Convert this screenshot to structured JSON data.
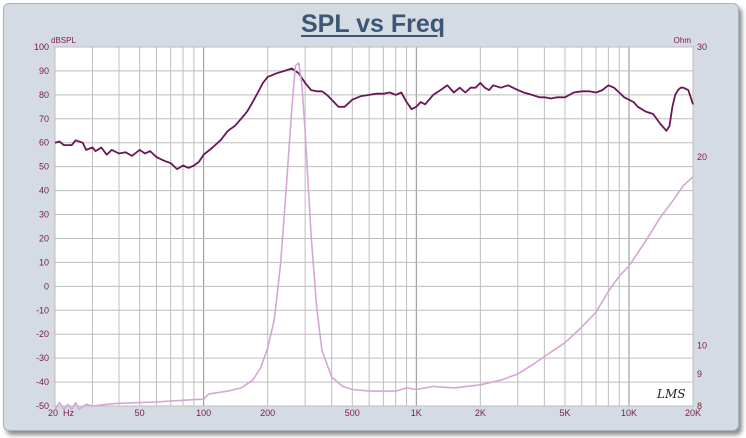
{
  "chart_data": {
    "type": "line",
    "title": "SPL vs Freq",
    "xlabel": "",
    "ylabel": "dBSPL",
    "y2label": "Ohm",
    "xscale": "log",
    "xlim": [
      20,
      20000
    ],
    "ylim": [
      -50,
      100
    ],
    "y2lim": [
      8,
      30
    ],
    "y2scale": "log",
    "grid": true,
    "x_tick_values": [
      20,
      50,
      100,
      200,
      500,
      1000,
      2000,
      5000,
      10000,
      20000
    ],
    "x_tick_labels": [
      "20  Hz",
      "50",
      "100",
      "200",
      "500",
      "1K",
      "2K",
      "5K",
      "10K",
      "20K"
    ],
    "y_ticks": [
      100,
      90,
      80,
      70,
      60,
      50,
      40,
      30,
      20,
      10,
      0,
      -10,
      -20,
      -30,
      -40,
      -50
    ],
    "y2_ticks": [
      30,
      20,
      10,
      9,
      8
    ],
    "logo_text": "LMS",
    "colors": {
      "spl": "#6b1654",
      "impedance": "#d4a7d3",
      "axis_text": "#7a1a4a",
      "title": "#3c5676",
      "frame": "#d5dbe2"
    },
    "series": [
      {
        "name": "",
        "axis": "left",
        "points": [
          [
            20,
            60
          ],
          [
            21,
            60.5
          ],
          [
            22,
            59
          ],
          [
            24,
            59
          ],
          [
            25,
            61
          ],
          [
            27,
            60
          ],
          [
            28,
            57
          ],
          [
            30,
            58
          ],
          [
            31,
            56.5
          ],
          [
            33,
            58
          ],
          [
            35,
            55
          ],
          [
            37,
            57
          ],
          [
            40,
            55.5
          ],
          [
            43,
            56
          ],
          [
            46,
            54.5
          ],
          [
            50,
            57
          ],
          [
            53,
            55.5
          ],
          [
            56,
            56.5
          ],
          [
            60,
            54
          ],
          [
            65,
            52.5
          ],
          [
            70,
            51.5
          ],
          [
            75,
            49
          ],
          [
            80,
            50.5
          ],
          [
            85,
            49.5
          ],
          [
            90,
            50.5
          ],
          [
            95,
            52
          ],
          [
            100,
            55
          ],
          [
            110,
            58
          ],
          [
            120,
            61
          ],
          [
            130,
            65
          ],
          [
            140,
            67
          ],
          [
            150,
            70
          ],
          [
            160,
            73
          ],
          [
            170,
            77
          ],
          [
            180,
            81
          ],
          [
            190,
            85
          ],
          [
            200,
            87.5
          ],
          [
            220,
            89
          ],
          [
            240,
            90
          ],
          [
            260,
            91
          ],
          [
            280,
            89
          ],
          [
            300,
            85
          ],
          [
            320,
            82
          ],
          [
            340,
            81.5
          ],
          [
            360,
            81.5
          ],
          [
            380,
            80
          ],
          [
            400,
            78
          ],
          [
            430,
            75
          ],
          [
            460,
            75
          ],
          [
            500,
            78
          ],
          [
            550,
            79.5
          ],
          [
            600,
            80
          ],
          [
            650,
            80.5
          ],
          [
            700,
            80.5
          ],
          [
            750,
            81
          ],
          [
            800,
            80
          ],
          [
            850,
            81
          ],
          [
            900,
            77
          ],
          [
            950,
            74
          ],
          [
            1000,
            75
          ],
          [
            1050,
            77
          ],
          [
            1100,
            76
          ],
          [
            1200,
            80
          ],
          [
            1300,
            82
          ],
          [
            1400,
            84
          ],
          [
            1500,
            81
          ],
          [
            1600,
            83
          ],
          [
            1700,
            81
          ],
          [
            1800,
            83
          ],
          [
            1900,
            83
          ],
          [
            2000,
            85
          ],
          [
            2100,
            83
          ],
          [
            2200,
            82
          ],
          [
            2300,
            84
          ],
          [
            2500,
            83
          ],
          [
            2700,
            84
          ],
          [
            3000,
            82
          ],
          [
            3200,
            81
          ],
          [
            3500,
            80
          ],
          [
            3800,
            79
          ],
          [
            4000,
            79
          ],
          [
            4300,
            78.5
          ],
          [
            4600,
            79
          ],
          [
            5000,
            79
          ],
          [
            5500,
            81
          ],
          [
            6000,
            81.5
          ],
          [
            6500,
            81.5
          ],
          [
            7000,
            81
          ],
          [
            7500,
            82
          ],
          [
            8000,
            84
          ],
          [
            8500,
            83
          ],
          [
            9000,
            81
          ],
          [
            9500,
            79
          ],
          [
            10000,
            78
          ],
          [
            10500,
            77
          ],
          [
            11000,
            75
          ],
          [
            12000,
            73
          ],
          [
            13000,
            72
          ],
          [
            14000,
            68
          ],
          [
            15000,
            65
          ],
          [
            15500,
            67
          ],
          [
            16000,
            75
          ],
          [
            16500,
            80
          ],
          [
            17000,
            82
          ],
          [
            17500,
            83
          ],
          [
            18000,
            83
          ],
          [
            19000,
            82
          ],
          [
            20000,
            76
          ]
        ]
      },
      {
        "name": "",
        "axis": "right",
        "points": [
          [
            20,
            7.9
          ],
          [
            21,
            8.1
          ],
          [
            22,
            7.9
          ],
          [
            23,
            8.05
          ],
          [
            24,
            7.9
          ],
          [
            25,
            8.1
          ],
          [
            26,
            7.9
          ],
          [
            28,
            8.05
          ],
          [
            30,
            8.0
          ],
          [
            35,
            8.05
          ],
          [
            40,
            8.08
          ],
          [
            50,
            8.1
          ],
          [
            60,
            8.12
          ],
          [
            70,
            8.15
          ],
          [
            80,
            8.17
          ],
          [
            90,
            8.19
          ],
          [
            100,
            8.2
          ],
          [
            105,
            8.35
          ],
          [
            110,
            8.38
          ],
          [
            130,
            8.45
          ],
          [
            150,
            8.55
          ],
          [
            170,
            8.8
          ],
          [
            185,
            9.2
          ],
          [
            200,
            9.9
          ],
          [
            215,
            11
          ],
          [
            230,
            13.5
          ],
          [
            245,
            18
          ],
          [
            260,
            24
          ],
          [
            270,
            28
          ],
          [
            280,
            28.3
          ],
          [
            290,
            26
          ],
          [
            300,
            22
          ],
          [
            320,
            15
          ],
          [
            340,
            11.5
          ],
          [
            360,
            9.8
          ],
          [
            400,
            8.9
          ],
          [
            450,
            8.6
          ],
          [
            500,
            8.5
          ],
          [
            600,
            8.45
          ],
          [
            700,
            8.45
          ],
          [
            800,
            8.45
          ],
          [
            900,
            8.55
          ],
          [
            1000,
            8.5
          ],
          [
            1200,
            8.6
          ],
          [
            1500,
            8.55
          ],
          [
            2000,
            8.65
          ],
          [
            2500,
            8.8
          ],
          [
            3000,
            9.0
          ],
          [
            3500,
            9.3
          ],
          [
            4000,
            9.6
          ],
          [
            5000,
            10.1
          ],
          [
            6000,
            10.7
          ],
          [
            7000,
            11.3
          ],
          [
            8000,
            12.2
          ],
          [
            9000,
            12.9
          ],
          [
            10000,
            13.4
          ],
          [
            12000,
            14.7
          ],
          [
            14000,
            16.0
          ],
          [
            16000,
            17.0
          ],
          [
            18000,
            18.0
          ],
          [
            20000,
            18.6
          ]
        ]
      }
    ]
  }
}
